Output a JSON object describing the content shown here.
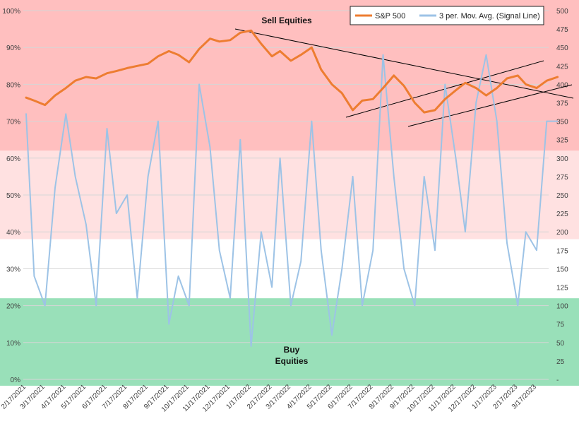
{
  "chart_data": {
    "type": "line",
    "title": "",
    "x_ticks": [
      "2/17/2021",
      "3/17/2021",
      "4/17/2021",
      "5/17/2021",
      "6/17/2021",
      "7/17/2021",
      "8/17/2021",
      "9/17/2021",
      "10/17/2021",
      "11/17/2021",
      "12/17/2021",
      "1/17/2022",
      "2/17/2022",
      "3/17/2022",
      "4/17/2022",
      "5/17/2022",
      "6/17/2022",
      "7/17/2022",
      "8/17/2022",
      "9/17/2022",
      "10/17/2022",
      "11/17/2022",
      "12/17/2022",
      "1/17/2023",
      "2/17/2023",
      "3/17/2023"
    ],
    "y_left": {
      "ticks": [
        "0%",
        "10%",
        "20%",
        "30%",
        "40%",
        "50%",
        "60%",
        "70%",
        "80%",
        "90%",
        "100%"
      ],
      "range": [
        0,
        100
      ]
    },
    "y_right": {
      "ticks": [
        "-",
        "25",
        "50",
        "75",
        "100",
        "125",
        "150",
        "175",
        "200",
        "225",
        "250",
        "275",
        "300",
        "325",
        "350",
        "375",
        "400",
        "425",
        "450",
        "475",
        "500"
      ],
      "range": [
        0,
        500
      ]
    },
    "zones": [
      {
        "from": 62,
        "to": 100,
        "color": "#ffbfbf"
      },
      {
        "from": 38,
        "to": 62,
        "color": "#ffe1e1"
      },
      {
        "from": 22,
        "to": 38,
        "color": "#ffffff"
      },
      {
        "from": 0,
        "to": 22,
        "color": "#99e0b9"
      }
    ],
    "annotations": [
      "Sell Equities",
      "Buy",
      "Equities"
    ],
    "legend": {
      "position": "top-right"
    },
    "series": [
      {
        "name": "S&P 500",
        "axis": "right",
        "color": "#ed7d31",
        "x": [
          "2/17/2021",
          "3/1/2021",
          "3/17/2021",
          "4/1/2021",
          "4/17/2021",
          "5/1/2021",
          "5/17/2021",
          "6/1/2021",
          "6/17/2021",
          "7/1/2021",
          "7/17/2021",
          "8/1/2021",
          "8/17/2021",
          "9/1/2021",
          "9/17/2021",
          "10/1/2021",
          "10/17/2021",
          "11/1/2021",
          "11/17/2021",
          "12/1/2021",
          "12/17/2021",
          "1/1/2022",
          "1/17/2022",
          "2/1/2022",
          "2/17/2022",
          "3/1/2022",
          "3/17/2022",
          "4/1/2022",
          "4/17/2022",
          "5/1/2022",
          "5/17/2022",
          "6/1/2022",
          "6/17/2022",
          "7/1/2022",
          "7/17/2022",
          "8/1/2022",
          "8/17/2022",
          "9/1/2022",
          "9/17/2022",
          "10/1/2022",
          "10/17/2022",
          "11/1/2022",
          "11/17/2022",
          "12/1/2022",
          "12/17/2022",
          "1/1/2023",
          "1/17/2023",
          "2/1/2023",
          "2/17/2023",
          "3/1/2023",
          "3/17/2023",
          "4/1/2023",
          "4/17/2023"
        ],
        "values": [
          382,
          378,
          372,
          385,
          395,
          405,
          410,
          408,
          415,
          418,
          422,
          425,
          428,
          438,
          445,
          440,
          430,
          448,
          462,
          458,
          460,
          470,
          473,
          455,
          438,
          445,
          432,
          440,
          450,
          420,
          400,
          388,
          365,
          378,
          380,
          395,
          412,
          398,
          375,
          362,
          365,
          380,
          392,
          402,
          395,
          385,
          395,
          408,
          412,
          400,
          395,
          405,
          410
        ]
      },
      {
        "name": "3 per. Mov. Avg. (Signal Line)",
        "axis": "left",
        "color": "#9dc3e6",
        "x": [
          "2/17/2021",
          "3/1/2021",
          "3/17/2021",
          "4/1/2021",
          "4/17/2021",
          "5/1/2021",
          "5/17/2021",
          "6/1/2021",
          "6/17/2021",
          "7/1/2021",
          "7/17/2021",
          "8/1/2021",
          "8/17/2021",
          "9/1/2021",
          "9/17/2021",
          "10/1/2021",
          "10/17/2021",
          "11/1/2021",
          "11/17/2021",
          "12/1/2021",
          "12/17/2021",
          "1/1/2022",
          "1/17/2022",
          "2/1/2022",
          "2/17/2022",
          "3/1/2022",
          "3/17/2022",
          "4/1/2022",
          "4/17/2022",
          "5/1/2022",
          "5/17/2022",
          "6/1/2022",
          "6/17/2022",
          "7/1/2022",
          "7/17/2022",
          "8/1/2022",
          "8/17/2022",
          "9/1/2022",
          "9/17/2022",
          "10/1/2022",
          "10/17/2022",
          "11/1/2022",
          "11/17/2022",
          "12/1/2022",
          "12/17/2022",
          "1/1/2023",
          "1/17/2023",
          "2/1/2023",
          "2/17/2023",
          "3/1/2023",
          "3/17/2023",
          "4/1/2023",
          "4/17/2023"
        ],
        "values": [
          72,
          28,
          20,
          52,
          72,
          55,
          42,
          20,
          68,
          45,
          50,
          22,
          55,
          70,
          15,
          28,
          20,
          80,
          63,
          35,
          22,
          65,
          9,
          40,
          25,
          60,
          20,
          32,
          70,
          35,
          12,
          30,
          55,
          20,
          35,
          88,
          55,
          30,
          20,
          55,
          35,
          80,
          60,
          40,
          75,
          88,
          70,
          37,
          20,
          40,
          35,
          70,
          70
        ]
      }
    ]
  }
}
